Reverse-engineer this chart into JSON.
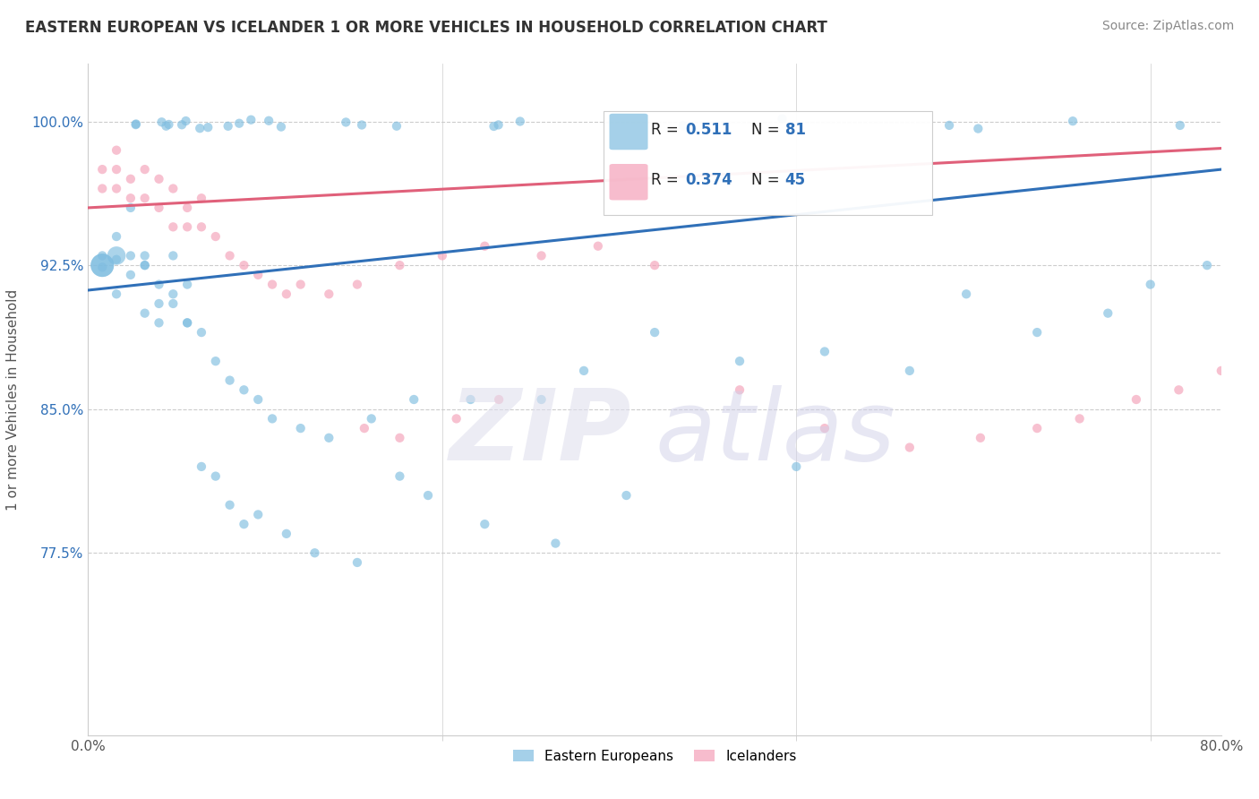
{
  "title": "EASTERN EUROPEAN VS ICELANDER 1 OR MORE VEHICLES IN HOUSEHOLD CORRELATION CHART",
  "source": "Source: ZipAtlas.com",
  "ylabel": "1 or more Vehicles in Household",
  "yticks": [
    "100.0%",
    "92.5%",
    "85.0%",
    "77.5%"
  ],
  "ytick_vals": [
    1.0,
    0.925,
    0.85,
    0.775
  ],
  "xlim": [
    0.0,
    0.8
  ],
  "ylim": [
    0.68,
    1.03
  ],
  "legend_labels": [
    "Eastern Europeans",
    "Icelanders"
  ],
  "blue_R": "0.511",
  "blue_N": "81",
  "pink_R": "0.374",
  "pink_N": "45",
  "blue_color": "#7fbde0",
  "pink_color": "#f4a0b8",
  "blue_line_color": "#3070b8",
  "pink_line_color": "#e0607a",
  "text_color_blue": "#3070b8",
  "text_color_dark": "#333333"
}
